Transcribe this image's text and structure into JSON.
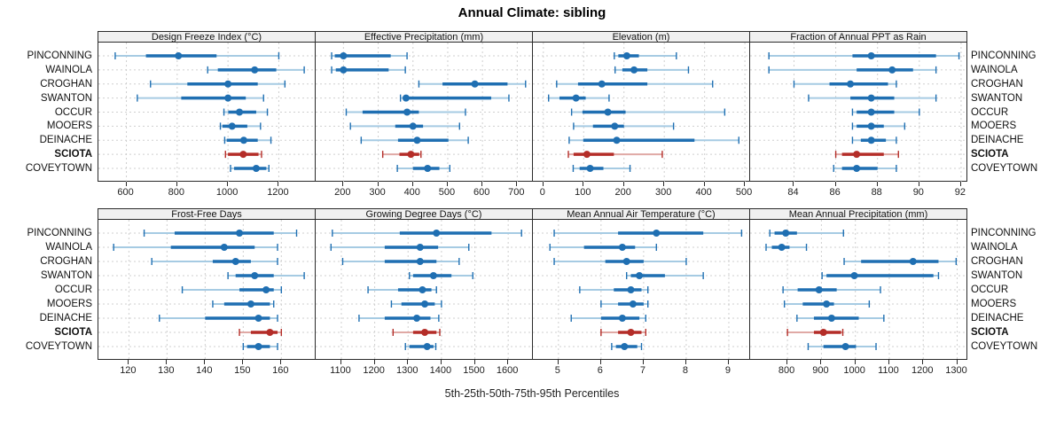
{
  "title": "Annual Climate: sibling",
  "caption": "5th-25th-50th-75th-95th Percentiles",
  "percentile_labels": [
    "5th",
    "25th",
    "50th",
    "75th",
    "95th"
  ],
  "locations": [
    "PINCONNING",
    "WAINOLA",
    "CROGHAN",
    "SWANTON",
    "OCCUR",
    "MOOERS",
    "DEINACHE",
    "SCIOTA",
    "COVEYTOWN"
  ],
  "highlight_location": "SCIOTA",
  "colors": {
    "series_main": "#1f6fb2",
    "series_light": "#a6cbe3",
    "highlight_main": "#b42d28",
    "highlight_light": "#e0a9a5",
    "grid": "#cfcfcf",
    "strip_bg": "#f0f0f0",
    "border": "#2a2a2a"
  },
  "chart_data": {
    "type": "scatter",
    "subtype": "percentile-interval-dotplot",
    "grid": "dashed",
    "legend": "none",
    "categories": [
      "PINCONNING",
      "WAINOLA",
      "CROGHAN",
      "SWANTON",
      "OCCUR",
      "MOOERS",
      "DEINACHE",
      "SCIOTA",
      "COVEYTOWN"
    ],
    "percentiles_order": [
      5,
      25,
      50,
      75,
      95
    ],
    "panels": [
      {
        "title": "Design Freeze Index (°C)",
        "row": 0,
        "col": 0,
        "xticks": [
          600,
          800,
          1000,
          1200
        ],
        "xlim": [
          490,
          1345
        ],
        "values": {
          "PINCONNING": [
            556,
            677,
            805,
            955,
            1200
          ],
          "WAINOLA": [
            920,
            960,
            1105,
            1190,
            1300
          ],
          "CROGHAN": [
            695,
            840,
            1000,
            1117,
            1224
          ],
          "SWANTON": [
            643,
            816,
            1000,
            1070,
            1140
          ],
          "OCCUR": [
            984,
            1001,
            1045,
            1111,
            1155
          ],
          "MOOERS": [
            970,
            978,
            1016,
            1076,
            1128
          ],
          "DEINACHE": [
            987,
            995,
            1062,
            1117,
            1169
          ],
          "SCIOTA": [
            990,
            1000,
            1060,
            1120,
            1132
          ],
          "COVEYTOWN": [
            1010,
            1024,
            1111,
            1151,
            1161
          ]
        }
      },
      {
        "title": "Effective Precipitation (mm)",
        "row": 0,
        "col": 1,
        "xticks": [
          200,
          300,
          400,
          500,
          600,
          700
        ],
        "xlim": [
          120,
          745
        ],
        "values": {
          "PINCONNING": [
            166,
            175,
            200,
            336,
            383
          ],
          "WAINOLA": [
            166,
            178,
            200,
            330,
            378
          ],
          "CROGHAN": [
            417,
            485,
            578,
            672,
            724
          ],
          "SWANTON": [
            364,
            374,
            380,
            625,
            676
          ],
          "OCCUR": [
            208,
            255,
            383,
            417,
            551
          ],
          "MOOERS": [
            220,
            349,
            400,
            429,
            534
          ],
          "DEINACHE": [
            251,
            357,
            412,
            502,
            559
          ],
          "SCIOTA": [
            313,
            361,
            394,
            418,
            423
          ],
          "COVEYTOWN": [
            355,
            400,
            442,
            476,
            506
          ]
        }
      },
      {
        "title": "Elevation (m)",
        "row": 0,
        "col": 2,
        "xticks": [
          0,
          100,
          200,
          300,
          400,
          500
        ],
        "xlim": [
          -26,
          513
        ],
        "values": {
          "PINCONNING": [
            176,
            186,
            207,
            237,
            330
          ],
          "WAINOLA": [
            178,
            196,
            225,
            258,
            360
          ],
          "CROGHAN": [
            33,
            86,
            145,
            258,
            420
          ],
          "SWANTON": [
            13,
            40,
            81,
            105,
            163
          ],
          "OCCUR": [
            70,
            97,
            160,
            204,
            450
          ],
          "MOOERS": [
            75,
            123,
            177,
            200,
            323
          ],
          "DEINACHE": [
            64,
            99,
            182,
            375,
            485
          ],
          "SCIOTA": [
            62,
            75,
            108,
            175,
            295
          ],
          "COVEYTOWN": [
            74,
            90,
            116,
            149,
            215
          ]
        }
      },
      {
        "title": "Fraction of Annual PPT as Rain",
        "row": 0,
        "col": 3,
        "xticks": [
          84,
          86,
          88,
          90,
          92
        ],
        "xlim": [
          81.9,
          92.3
        ],
        "values": {
          "PINCONNING": [
            82.8,
            86.8,
            87.7,
            90.8,
            91.9
          ],
          "WAINOLA": [
            82.8,
            87.0,
            88.7,
            89.7,
            90.8
          ],
          "CROGHAN": [
            84.0,
            85.7,
            86.7,
            88.5,
            88.9
          ],
          "SWANTON": [
            84.7,
            86.7,
            87.7,
            88.8,
            90.8
          ],
          "OCCUR": [
            86.8,
            87.0,
            87.7,
            88.8,
            90.0
          ],
          "MOOERS": [
            86.8,
            87.0,
            87.7,
            88.3,
            89.3
          ],
          "DEINACHE": [
            86.8,
            87.2,
            87.7,
            88.4,
            88.9
          ],
          "SCIOTA": [
            86.0,
            86.3,
            87.0,
            88.3,
            89.0
          ],
          "COVEYTOWN": [
            85.9,
            86.3,
            87.0,
            88.0,
            88.9
          ]
        }
      },
      {
        "title": "Frost-Free Days",
        "row": 1,
        "col": 0,
        "xticks": [
          120,
          130,
          140,
          150,
          160
        ],
        "xlim": [
          112,
          169
        ],
        "values": {
          "PINCONNING": [
            124,
            132,
            149,
            158,
            164
          ],
          "WAINOLA": [
            116,
            131,
            145,
            153,
            159
          ],
          "CROGHAN": [
            126,
            142,
            148,
            152,
            159
          ],
          "SWANTON": [
            146,
            148,
            153,
            158,
            166
          ],
          "OCCUR": [
            134,
            149,
            156,
            158,
            160
          ],
          "MOOERS": [
            142,
            145,
            152,
            157,
            158
          ],
          "DEINACHE": [
            128,
            140,
            154,
            157,
            159
          ],
          "SCIOTA": [
            149,
            152,
            157,
            159,
            160
          ],
          "COVEYTOWN": [
            150,
            151,
            154,
            157,
            159
          ]
        }
      },
      {
        "title": "Growing Degree Days (°C)",
        "row": 1,
        "col": 1,
        "xticks": [
          1100,
          1200,
          1300,
          1400,
          1500,
          1600
        ],
        "xlim": [
          1023,
          1674
        ],
        "values": {
          "PINCONNING": [
            1073,
            1275,
            1385,
            1550,
            1640
          ],
          "WAINOLA": [
            1069,
            1230,
            1336,
            1390,
            1482
          ],
          "CROGHAN": [
            1104,
            1230,
            1336,
            1385,
            1453
          ],
          "SWANTON": [
            1304,
            1315,
            1376,
            1430,
            1494
          ],
          "OCCUR": [
            1180,
            1270,
            1343,
            1370,
            1385
          ],
          "MOOERS": [
            1250,
            1280,
            1350,
            1380,
            1400
          ],
          "DEINACHE": [
            1153,
            1230,
            1326,
            1367,
            1392
          ],
          "SCIOTA": [
            1255,
            1315,
            1350,
            1385,
            1395
          ],
          "COVEYTOWN": [
            1292,
            1304,
            1357,
            1376,
            1383
          ]
        }
      },
      {
        "title": "Mean Annual Air Temperature (°C)",
        "row": 1,
        "col": 2,
        "xticks": [
          5,
          6,
          7,
          8,
          9
        ],
        "xlim": [
          4.4,
          9.5
        ],
        "values": {
          "PINCONNING": [
            4.9,
            6.4,
            7.3,
            8.4,
            9.3
          ],
          "WAINOLA": [
            4.8,
            5.6,
            6.5,
            6.8,
            7.3
          ],
          "CROGHAN": [
            4.9,
            6.1,
            6.6,
            7.0,
            8.0
          ],
          "SWANTON": [
            6.6,
            6.7,
            6.9,
            7.5,
            8.4
          ],
          "OCCUR": [
            5.5,
            6.3,
            6.7,
            6.95,
            7.1
          ],
          "MOOERS": [
            6.0,
            6.4,
            6.75,
            7.0,
            7.1
          ],
          "DEINACHE": [
            5.3,
            6.0,
            6.5,
            6.9,
            7.05
          ],
          "SCIOTA": [
            6.0,
            6.4,
            6.7,
            6.95,
            7.05
          ],
          "COVEYTOWN": [
            6.25,
            6.35,
            6.55,
            6.85,
            6.95
          ]
        }
      },
      {
        "title": "Mean Annual Precipitation (mm)",
        "row": 1,
        "col": 3,
        "xticks": [
          800,
          900,
          1000,
          1100,
          1200,
          1300
        ],
        "xlim": [
          690,
          1330
        ],
        "values": {
          "PINCONNING": [
            748,
            762,
            795,
            828,
            965
          ],
          "WAINOLA": [
            737,
            754,
            783,
            806,
            856
          ],
          "CROGHAN": [
            967,
            1017,
            1170,
            1245,
            1297
          ],
          "SWANTON": [
            902,
            915,
            997,
            1230,
            1245
          ],
          "OCCUR": [
            787,
            830,
            893,
            945,
            1074
          ],
          "MOOERS": [
            791,
            845,
            915,
            937,
            1041
          ],
          "DEINACHE": [
            828,
            878,
            930,
            1010,
            1084
          ],
          "SCIOTA": [
            800,
            878,
            906,
            958,
            963
          ],
          "COVEYTOWN": [
            861,
            906,
            971,
            1002,
            1061
          ]
        }
      }
    ]
  }
}
